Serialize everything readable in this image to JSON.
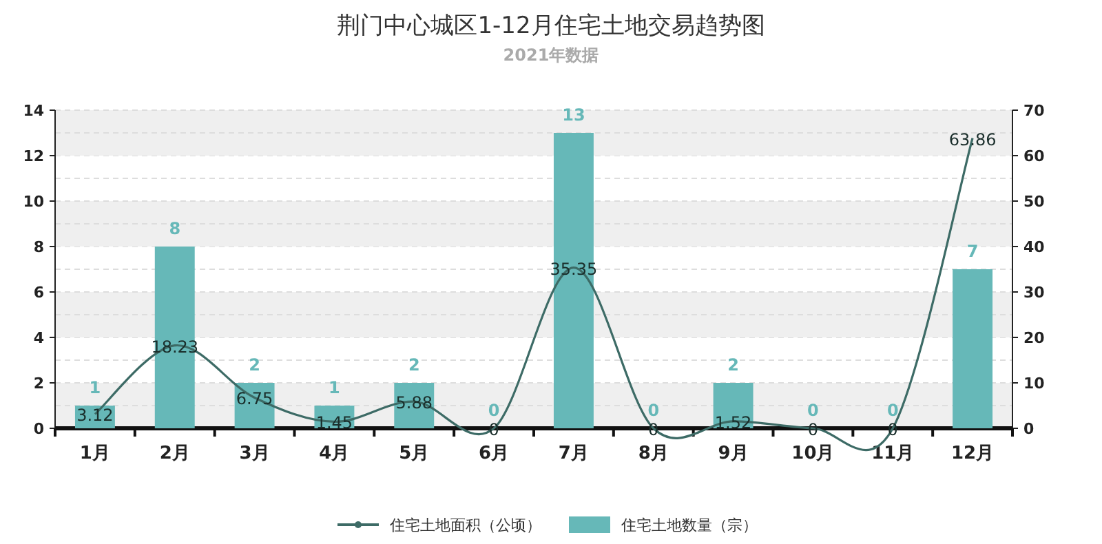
{
  "chart_data": {
    "type": "bar",
    "title": "荆门中心城区1-12月住宅土地交易趋势图",
    "subtitle": "2021年数据",
    "categories": [
      "1月",
      "2月",
      "3月",
      "4月",
      "5月",
      "6月",
      "7月",
      "8月",
      "9月",
      "10月",
      "11月",
      "12月"
    ],
    "series": [
      {
        "name": "住宅土地面积（公顷）",
        "type": "line",
        "axis": "y2",
        "color": "#3d6b66",
        "values": [
          3.12,
          18.23,
          6.75,
          1.45,
          5.88,
          0,
          35.35,
          0,
          1.52,
          0,
          0,
          63.86
        ]
      },
      {
        "name": "住宅土地数量（宗）",
        "color": "#66b8b8",
        "values": [
          1,
          8,
          2,
          1,
          2,
          0,
          13,
          0,
          2,
          0,
          0,
          7
        ]
      }
    ],
    "ylim": [
      0,
      14
    ],
    "yticks": [
      0,
      2,
      4,
      6,
      8,
      10,
      12,
      14
    ],
    "y2lim": [
      0,
      70
    ],
    "y2ticks": [
      0,
      10,
      20,
      30,
      40,
      50,
      60,
      70
    ],
    "grid": true,
    "data_labels": true,
    "legend": "bottom"
  }
}
